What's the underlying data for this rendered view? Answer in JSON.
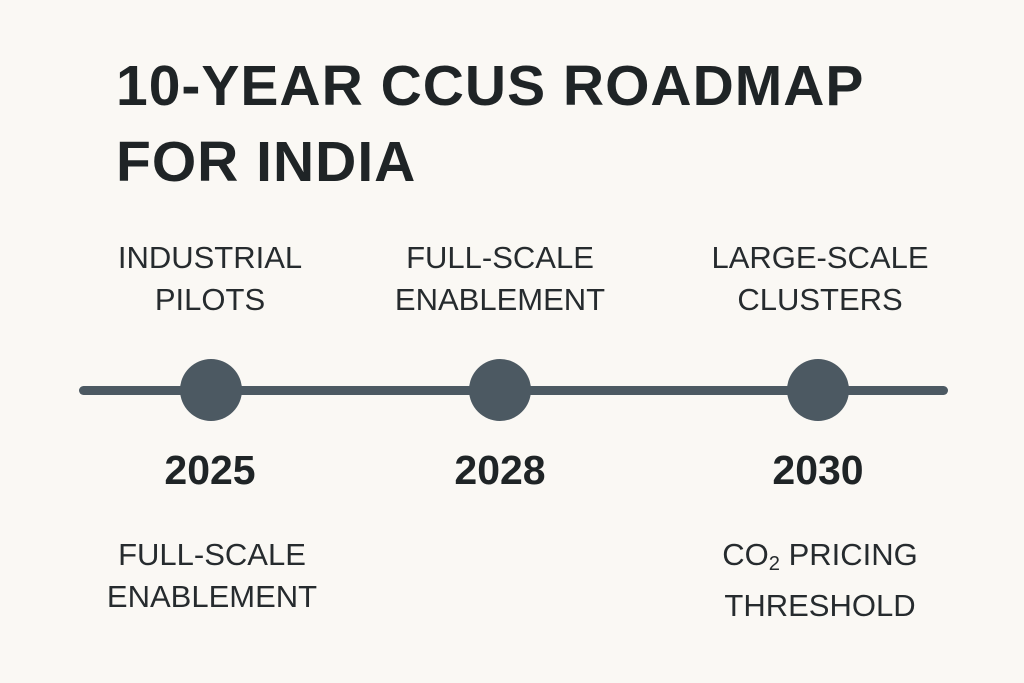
{
  "title": {
    "line1": "10-YEAR CCUS ROADMAP",
    "line2": "FOR INDIA"
  },
  "milestones": [
    {
      "year": "2025",
      "top": [
        "INDUSTRIAL",
        "PILOTS"
      ],
      "bottom": [
        "FULL-SCALE",
        "ENABLEMENT"
      ]
    },
    {
      "year": "2028",
      "top": [
        "FULL-SCALE",
        "ENABLEMENT"
      ]
    },
    {
      "year": "2030",
      "top": [
        "LARGE-SCALE",
        "CLUSTERS"
      ],
      "bottom": [
        "CO",
        "2",
        " PRICING",
        "THRESHOLD"
      ]
    }
  ],
  "colors": {
    "background": "#faf8f4",
    "timeline": "#4c5962",
    "text": "#1f2426"
  }
}
